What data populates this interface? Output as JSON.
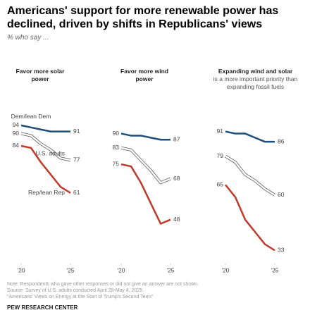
{
  "header": {
    "title": "Americans' support for more renewable power has declined, driven by shifts in Republicans' views",
    "subtitle": "% who say ..."
  },
  "chart_data": [
    {
      "type": "line",
      "title": "Favor more solar power",
      "x": [
        2020,
        2021,
        2022,
        2023,
        2024,
        2025
      ],
      "xlim": [
        2020,
        2025
      ],
      "xticks": [
        {
          "value": 2020,
          "label": "'20"
        },
        {
          "value": 2025,
          "label": "'25"
        }
      ],
      "ylim": [
        30,
        95
      ],
      "series": [
        {
          "name": "Dem/lean Dem",
          "color": "#1f4e79",
          "values": [
            94,
            93,
            92,
            91,
            91,
            91
          ]
        },
        {
          "name": "U.S. adults",
          "color": "#ffffff",
          "values": [
            90,
            89,
            85,
            82,
            78,
            77
          ]
        },
        {
          "name": "Rep/lean Rep",
          "color": "#c0392b",
          "values": [
            84,
            83,
            76,
            70,
            64,
            61
          ]
        }
      ]
    },
    {
      "type": "line",
      "title": "Favor more wind power",
      "x": [
        2020,
        2021,
        2022,
        2023,
        2024,
        2025
      ],
      "xlim": [
        2020,
        2025
      ],
      "xticks": [
        {
          "value": 2020,
          "label": "'20"
        },
        {
          "value": 2025,
          "label": "'25"
        }
      ],
      "ylim": [
        30,
        95
      ],
      "series": [
        {
          "name": "Dem/lean Dem",
          "color": "#1f4e79",
          "values": [
            90,
            89,
            89,
            88,
            87,
            87
          ]
        },
        {
          "name": "U.S. adults",
          "color": "#ffffff",
          "values": [
            83,
            82,
            77,
            72,
            66,
            68
          ]
        },
        {
          "name": "Rep/lean Rep",
          "color": "#c0392b",
          "values": [
            75,
            74,
            66,
            56,
            46,
            48
          ]
        }
      ]
    },
    {
      "type": "line",
      "title": "Expanding wind and solar",
      "subtitle": "is a more important priority than expanding fossil fuels",
      "x": [
        2020,
        2021,
        2022,
        2023,
        2024,
        2025
      ],
      "xlim": [
        2020,
        2025
      ],
      "xticks": [
        {
          "value": 2020,
          "label": "'20"
        },
        {
          "value": 2025,
          "label": "'25"
        }
      ],
      "ylim": [
        30,
        95
      ],
      "series": [
        {
          "name": "Dem/lean Dem",
          "color": "#1f4e79",
          "values": [
            91,
            90,
            90,
            88,
            86,
            86
          ]
        },
        {
          "name": "U.S. adults",
          "color": "#ffffff",
          "values": [
            79,
            76,
            70,
            67,
            63,
            60
          ]
        },
        {
          "name": "Rep/lean Rep",
          "color": "#c0392b",
          "values": [
            65,
            59,
            48,
            42,
            36,
            33
          ]
        }
      ]
    }
  ],
  "footer": {
    "note": "Note: Respondents who gave other responses or did not give an answer are not shown.",
    "source": "Source: Survey of U.S. adults conducted April 28-May 4, 2025.",
    "report": "“Americans' Views on Energy at the Start of Trump's Second Term”",
    "brand": "PEW RESEARCH CENTER"
  }
}
